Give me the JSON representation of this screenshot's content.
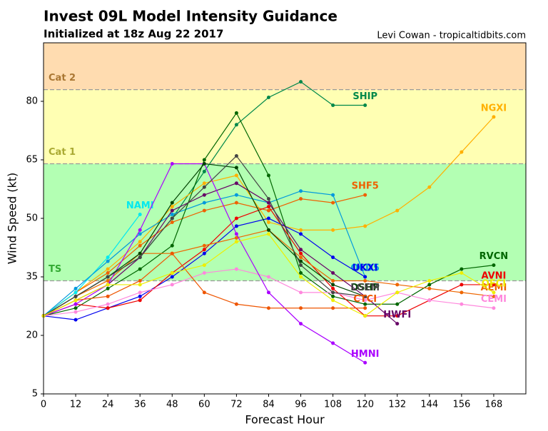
{
  "chart_data": {
    "type": "line",
    "title": "Invest 09L Model Intensity Guidance",
    "subtitle": "Initialized at 18z Aug 22 2017",
    "credit": "Levi Cowan - tropicaltidbits.com",
    "x_label": "Forecast Hour",
    "y_label": "Wind Speed (kt)",
    "x": [
      0,
      12,
      24,
      36,
      48,
      60,
      72,
      84,
      96,
      108,
      120,
      132,
      144,
      156,
      168
    ],
    "xlim": [
      0,
      180
    ],
    "ylim": [
      5,
      95
    ],
    "xticks": [
      0,
      12,
      24,
      36,
      48,
      60,
      72,
      84,
      96,
      108,
      120,
      132,
      144,
      156,
      168
    ],
    "yticks": [
      5,
      20,
      35,
      50,
      65,
      80
    ],
    "bands": [
      {
        "name": "TS",
        "from": 34,
        "to": 64,
        "color": "#b3ffb3"
      },
      {
        "name": "Cat 1",
        "from": 64,
        "to": 83,
        "color": "#ffffb3"
      },
      {
        "name": "Cat 2",
        "from": 83,
        "to": 95,
        "color": "#ffdcb0"
      }
    ],
    "series": [
      {
        "name": "SHIP",
        "color": "#00884a",
        "values": [
          25,
          30,
          35,
          40,
          50,
          62,
          74,
          81,
          85,
          79,
          79,
          null,
          null,
          null,
          null
        ]
      },
      {
        "name": "NGXI",
        "color": "#ffb000",
        "values": [
          25,
          31,
          37,
          44,
          53,
          59,
          61,
          49,
          47,
          47,
          48,
          52,
          58,
          67,
          76
        ]
      },
      {
        "name": "SHF5",
        "color": "#ee6000",
        "values": [
          25,
          31,
          36,
          43,
          49,
          52,
          54,
          52,
          55,
          54,
          56,
          null,
          null,
          null,
          null
        ]
      },
      {
        "name": "NAMI",
        "color": "#00e8f0",
        "values": [
          25,
          31,
          40,
          51,
          null,
          null,
          null,
          null,
          null,
          null,
          null,
          null,
          null,
          null,
          null
        ]
      },
      {
        "name": "OCD5",
        "color": "#0099dd",
        "values": [
          25,
          32,
          39,
          46,
          51,
          54,
          56,
          54,
          57,
          56,
          35,
          null,
          null,
          null,
          null
        ]
      },
      {
        "name": "UKXI",
        "color": "#0000ee",
        "values": [
          25,
          24,
          27,
          30,
          35,
          41,
          48,
          50,
          46,
          40,
          35,
          null,
          null,
          null,
          null
        ]
      },
      {
        "name": "RVCN",
        "color": "#006600",
        "values": [
          25,
          27,
          32,
          37,
          43,
          65,
          77,
          61,
          36,
          30,
          28,
          28,
          33,
          37,
          38
        ]
      },
      {
        "name": "AVNI",
        "color": "#ee0000",
        "values": [
          25,
          28,
          27,
          29,
          36,
          42,
          50,
          53,
          41,
          32,
          25,
          25,
          29,
          33,
          33
        ]
      },
      {
        "name": "AEMI",
        "color": "#ee6600",
        "values": [
          25,
          30,
          34,
          41,
          41,
          43,
          45,
          47,
          40,
          34,
          34,
          33,
          32,
          31,
          30
        ]
      },
      {
        "name": "CEMI",
        "color": "#ff88dd",
        "values": [
          25,
          26,
          28,
          31,
          33,
          36,
          37,
          35,
          31,
          31,
          29,
          31,
          29,
          28,
          27
        ]
      },
      {
        "name": "HWFI",
        "color": "#660066",
        "values": [
          25,
          29,
          33,
          40,
          52,
          56,
          59,
          54,
          42,
          36,
          30,
          23,
          null,
          null,
          null
        ]
      },
      {
        "name": "HMNI",
        "color": "#aa00ff",
        "values": [
          25,
          28,
          33,
          47,
          64,
          64,
          46,
          31,
          23,
          18,
          13,
          null,
          null,
          null,
          null
        ]
      },
      {
        "name": "DSHP",
        "color": "#004400",
        "values": [
          25,
          30,
          35,
          41,
          54,
          64,
          63,
          47,
          39,
          33,
          30,
          null,
          null,
          null,
          null
        ]
      },
      {
        "name": "LGEM",
        "color": "#444444",
        "values": [
          25,
          30,
          35,
          40,
          50,
          58,
          66,
          55,
          38,
          31,
          30,
          null,
          null,
          null,
          null
        ]
      },
      {
        "name": "CTCI",
        "color": "#ee5500",
        "values": [
          25,
          29,
          30,
          34,
          41,
          31,
          28,
          27,
          27,
          27,
          27,
          null,
          null,
          null,
          null
        ]
      },
      {
        "name": "OFCI",
        "color": "#eeee00",
        "values": [
          25,
          29,
          33,
          33,
          36,
          38,
          44,
          46,
          35,
          29,
          25,
          31,
          34,
          36,
          31
        ]
      }
    ]
  }
}
